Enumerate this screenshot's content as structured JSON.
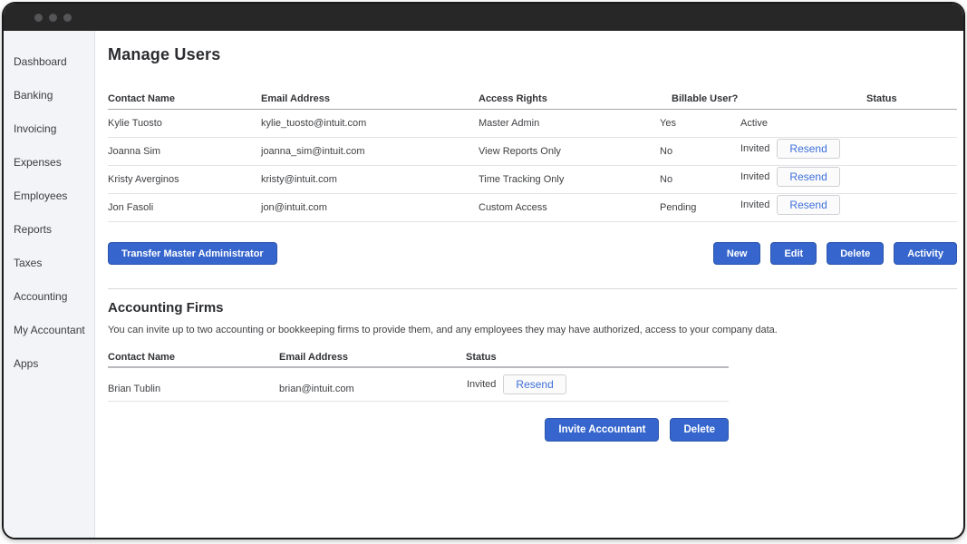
{
  "colors": {
    "accent_blue": "#3666cd",
    "resend_text_blue": "#3e6fd9",
    "titlebar_dark": "#272727",
    "sidebar_bg": "#f3f4f7"
  },
  "sidebar": {
    "items": [
      {
        "label": "Dashboard"
      },
      {
        "label": "Banking"
      },
      {
        "label": "Invoicing"
      },
      {
        "label": "Expenses"
      },
      {
        "label": "Employees"
      },
      {
        "label": "Reports"
      },
      {
        "label": "Taxes"
      },
      {
        "label": "Accounting"
      },
      {
        "label": "My Accountant"
      },
      {
        "label": "Apps"
      }
    ]
  },
  "manage_users": {
    "title": "Manage Users",
    "columns": [
      "Contact Name",
      "Email Address",
      "Access Rights",
      "Billable User?",
      "Status"
    ],
    "resend_label": "Resend",
    "rows": [
      {
        "contact": "Kylie Tuosto",
        "email": "kylie_tuosto@intuit.com",
        "access": "Master Admin",
        "billable": "Yes",
        "status": "Active",
        "has_resend": false
      },
      {
        "contact": "Joanna Sim",
        "email": "joanna_sim@intuit.com",
        "access": "View Reports Only",
        "billable": "No",
        "status": "Invited",
        "has_resend": true
      },
      {
        "contact": "Kristy Averginos",
        "email": "kristy@intuit.com",
        "access": "Time Tracking Only",
        "billable": "No",
        "status": "Invited",
        "has_resend": true
      },
      {
        "contact": "Jon Fasoli",
        "email": "jon@intuit.com",
        "access": "Custom Access",
        "billable": "Pending",
        "status": "Invited",
        "has_resend": true
      }
    ],
    "actions": {
      "transfer": "Transfer Master Administrator",
      "new": "New",
      "edit": "Edit",
      "delete": "Delete",
      "activity": "Activity"
    }
  },
  "accounting_firms": {
    "title": "Accounting Firms",
    "description": "You can invite up to two accounting or bookkeeping firms to provide them, and any employees they may have authorized, access to your company data.",
    "columns": [
      "Contact Name",
      "Email Address",
      "Status"
    ],
    "resend_label": "Resend",
    "rows": [
      {
        "contact": "Brian Tublin",
        "email": "brian@intuit.com",
        "status": "Invited",
        "has_resend": true
      }
    ],
    "actions": {
      "invite": "Invite Accountant",
      "delete": "Delete"
    }
  }
}
